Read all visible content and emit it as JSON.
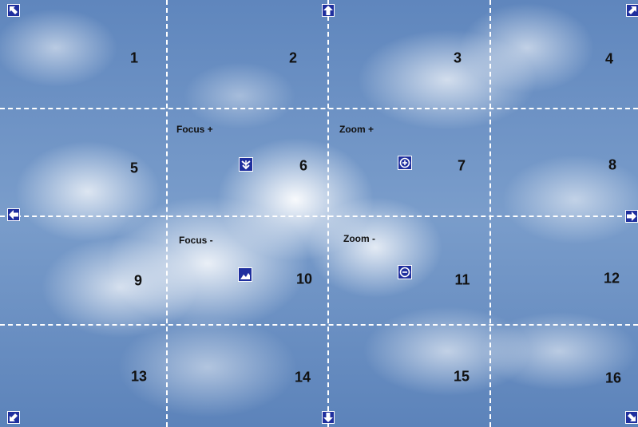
{
  "grid": {
    "cells": [
      "1",
      "2",
      "3",
      "4",
      "5",
      "6",
      "7",
      "8",
      "9",
      "10",
      "11",
      "12",
      "13",
      "14",
      "15",
      "16"
    ]
  },
  "controls": {
    "focus_plus": {
      "label": "Focus +",
      "icon": "focus-plus-icon"
    },
    "focus_minus": {
      "label": "Focus -",
      "icon": "focus-minus-icon"
    },
    "zoom_plus": {
      "label": "Zoom +",
      "icon": "zoom-in-icon"
    },
    "zoom_minus": {
      "label": "Zoom -",
      "icon": "zoom-out-icon"
    }
  },
  "navigation": {
    "pan_up": "arrow-up-icon",
    "pan_down": "arrow-down-icon",
    "pan_left": "arrow-left-icon",
    "pan_right": "arrow-right-icon",
    "pan_up_left": "arrow-up-left-icon",
    "pan_up_right": "arrow-up-right-icon",
    "pan_down_left": "arrow-down-left-icon",
    "pan_down_right": "arrow-down-right-icon"
  },
  "colors": {
    "button_bg": "#1f2f9e",
    "grid_line": "#ffffff",
    "cell_number": "#111111"
  }
}
